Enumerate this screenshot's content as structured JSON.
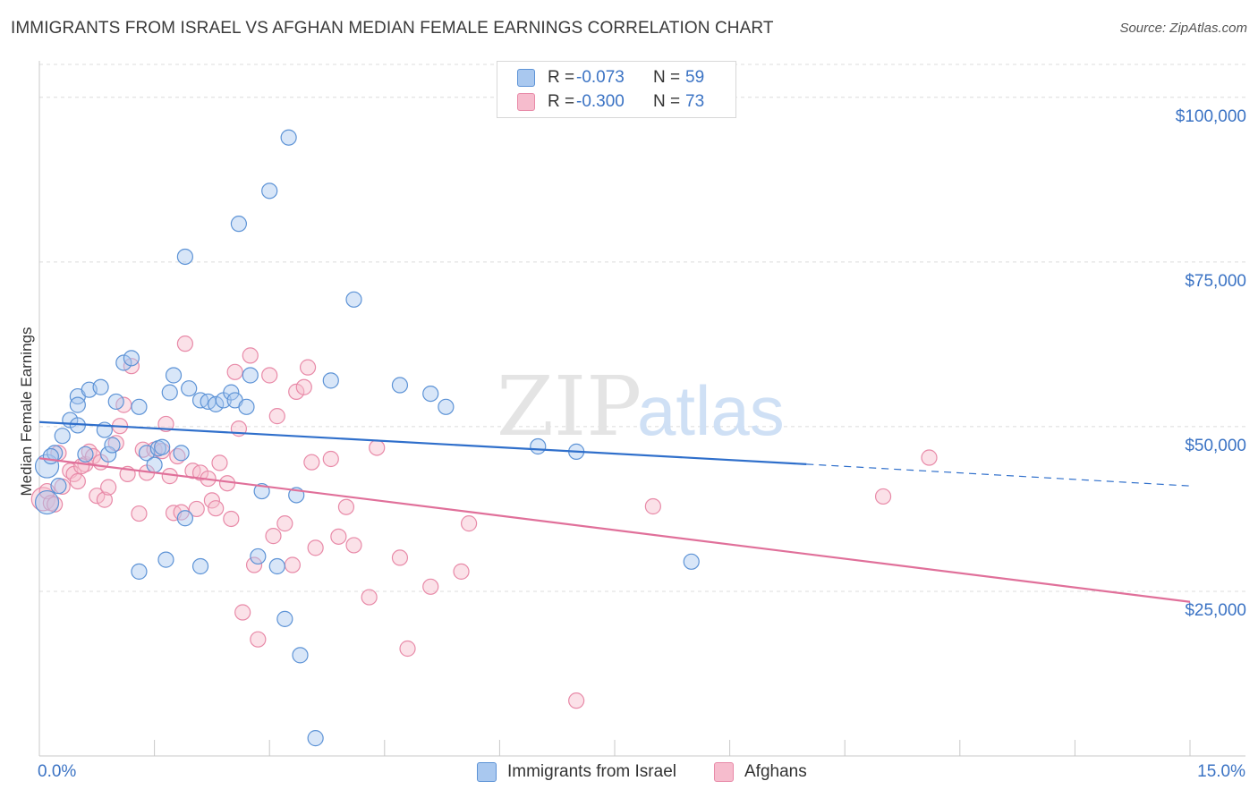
{
  "title": "IMMIGRANTS FROM ISRAEL VS AFGHAN MEDIAN FEMALE EARNINGS CORRELATION CHART",
  "source": "Source: ZipAtlas.com",
  "watermark": {
    "part1": "ZIP",
    "part2": "atlas"
  },
  "colors": {
    "blue_fill": "#a9c8ef",
    "blue_stroke": "#5d93d6",
    "blue_line": "#2f6fcb",
    "pink_fill": "#f6bccd",
    "pink_stroke": "#e88aa8",
    "pink_line": "#e0709a",
    "axis_text": "#3b73c4",
    "grid": "#dcdcdc"
  },
  "legend": {
    "rows": [
      {
        "r_label": "R =",
        "r_value": "-0.073",
        "n_label": "N =",
        "n_value": "59"
      },
      {
        "r_label": "R =",
        "r_value": "-0.300",
        "n_label": "N =",
        "n_value": "73"
      }
    ]
  },
  "bottom_legend": {
    "series1": "Immigrants from Israel",
    "series2": "Afghans"
  },
  "chart_data": {
    "type": "scatter",
    "title": "IMMIGRANTS FROM ISRAEL VS AFGHAN MEDIAN FEMALE EARNINGS CORRELATION CHART",
    "xlabel": "",
    "ylabel": "Median Female Earnings",
    "xlim": [
      0,
      15
    ],
    "ylim": [
      0,
      105000
    ],
    "x_tick_labels": [
      "0.0%",
      "15.0%"
    ],
    "y_ticks": [
      25000,
      50000,
      75000,
      100000
    ],
    "y_tick_labels": [
      "$25,000",
      "$50,000",
      "$75,000",
      "$100,000"
    ],
    "grid": true,
    "legend_position": "top-center",
    "series": [
      {
        "name": "Immigrants from Israel",
        "color": "#a9c8ef",
        "trend": {
          "x0": 0.0,
          "y0": 50700,
          "x1": 10.0,
          "y1": 44300,
          "dashed_to_x": 15.0,
          "dashed_to_y": 41000
        },
        "points": [
          [
            0.1,
            38500
          ],
          [
            0.1,
            44000
          ],
          [
            0.2,
            46000
          ],
          [
            0.25,
            41000
          ],
          [
            0.3,
            48600
          ],
          [
            0.4,
            51000
          ],
          [
            0.5,
            54600
          ],
          [
            0.5,
            53300
          ],
          [
            0.6,
            45800
          ],
          [
            0.65,
            55600
          ],
          [
            0.8,
            56000
          ],
          [
            0.85,
            49500
          ],
          [
            0.9,
            45800
          ],
          [
            0.95,
            47200
          ],
          [
            1.0,
            53800
          ],
          [
            1.1,
            59700
          ],
          [
            1.2,
            60400
          ],
          [
            1.3,
            28000
          ],
          [
            1.3,
            53000
          ],
          [
            1.4,
            46000
          ],
          [
            1.5,
            44200
          ],
          [
            1.55,
            46700
          ],
          [
            1.6,
            46900
          ],
          [
            1.65,
            29800
          ],
          [
            1.7,
            55200
          ],
          [
            1.75,
            57800
          ],
          [
            1.85,
            46000
          ],
          [
            1.9,
            36100
          ],
          [
            1.95,
            55800
          ],
          [
            1.9,
            75800
          ],
          [
            2.1,
            54000
          ],
          [
            2.2,
            53800
          ],
          [
            2.1,
            28800
          ],
          [
            2.3,
            53400
          ],
          [
            2.4,
            54000
          ],
          [
            2.5,
            55200
          ],
          [
            2.55,
            54000
          ],
          [
            2.6,
            80800
          ],
          [
            2.7,
            53000
          ],
          [
            2.75,
            57800
          ],
          [
            2.85,
            30300
          ],
          [
            2.9,
            40200
          ],
          [
            3.0,
            85800
          ],
          [
            3.1,
            28800
          ],
          [
            3.2,
            20800
          ],
          [
            3.25,
            93900
          ],
          [
            3.35,
            39600
          ],
          [
            3.4,
            15300
          ],
          [
            3.6,
            2700
          ],
          [
            3.8,
            57000
          ],
          [
            4.1,
            69300
          ],
          [
            4.7,
            56300
          ],
          [
            5.1,
            55000
          ],
          [
            5.3,
            53000
          ],
          [
            6.5,
            47000
          ],
          [
            7.0,
            46200
          ],
          [
            8.5,
            29500
          ],
          [
            0.15,
            45500
          ],
          [
            0.5,
            50200
          ]
        ]
      },
      {
        "name": "Afghans",
        "color": "#f6bccd",
        "trend": {
          "x0": 0.0,
          "y0": 45200,
          "x1": 15.0,
          "y1": 23400
        },
        "points": [
          [
            0.05,
            39000
          ],
          [
            0.1,
            40200
          ],
          [
            0.15,
            38400
          ],
          [
            0.25,
            46000
          ],
          [
            0.3,
            40900
          ],
          [
            0.4,
            43300
          ],
          [
            0.45,
            42800
          ],
          [
            0.5,
            41700
          ],
          [
            0.6,
            44300
          ],
          [
            0.65,
            46200
          ],
          [
            0.7,
            45500
          ],
          [
            0.75,
            39500
          ],
          [
            0.8,
            44600
          ],
          [
            0.85,
            38900
          ],
          [
            0.9,
            40800
          ],
          [
            1.0,
            47500
          ],
          [
            1.05,
            50100
          ],
          [
            1.1,
            53300
          ],
          [
            1.15,
            42800
          ],
          [
            1.2,
            59200
          ],
          [
            1.3,
            36800
          ],
          [
            1.35,
            46500
          ],
          [
            1.4,
            43000
          ],
          [
            1.5,
            46500
          ],
          [
            1.6,
            46300
          ],
          [
            1.65,
            50400
          ],
          [
            1.7,
            42500
          ],
          [
            1.75,
            36900
          ],
          [
            1.8,
            45500
          ],
          [
            1.85,
            37000
          ],
          [
            1.9,
            62600
          ],
          [
            2.0,
            43300
          ],
          [
            2.05,
            37500
          ],
          [
            2.1,
            43000
          ],
          [
            2.2,
            42100
          ],
          [
            2.25,
            38800
          ],
          [
            2.3,
            37600
          ],
          [
            2.35,
            44500
          ],
          [
            2.45,
            41400
          ],
          [
            2.5,
            36000
          ],
          [
            2.55,
            58300
          ],
          [
            2.6,
            49700
          ],
          [
            2.65,
            21800
          ],
          [
            2.75,
            60800
          ],
          [
            2.8,
            29000
          ],
          [
            2.85,
            17700
          ],
          [
            3.0,
            57800
          ],
          [
            3.05,
            33400
          ],
          [
            3.1,
            51600
          ],
          [
            3.2,
            35300
          ],
          [
            3.3,
            29000
          ],
          [
            3.35,
            55300
          ],
          [
            3.45,
            56000
          ],
          [
            3.5,
            59000
          ],
          [
            3.55,
            44600
          ],
          [
            3.6,
            31600
          ],
          [
            3.8,
            45100
          ],
          [
            3.9,
            33300
          ],
          [
            4.0,
            37800
          ],
          [
            4.1,
            32000
          ],
          [
            4.3,
            24100
          ],
          [
            4.4,
            46800
          ],
          [
            4.7,
            30100
          ],
          [
            4.8,
            16300
          ],
          [
            5.1,
            25700
          ],
          [
            5.5,
            28000
          ],
          [
            5.6,
            35300
          ],
          [
            7.0,
            8400
          ],
          [
            8.0,
            37900
          ],
          [
            11.0,
            39400
          ],
          [
            11.6,
            45300
          ],
          [
            0.2,
            38200
          ],
          [
            0.55,
            44000
          ]
        ]
      }
    ]
  }
}
